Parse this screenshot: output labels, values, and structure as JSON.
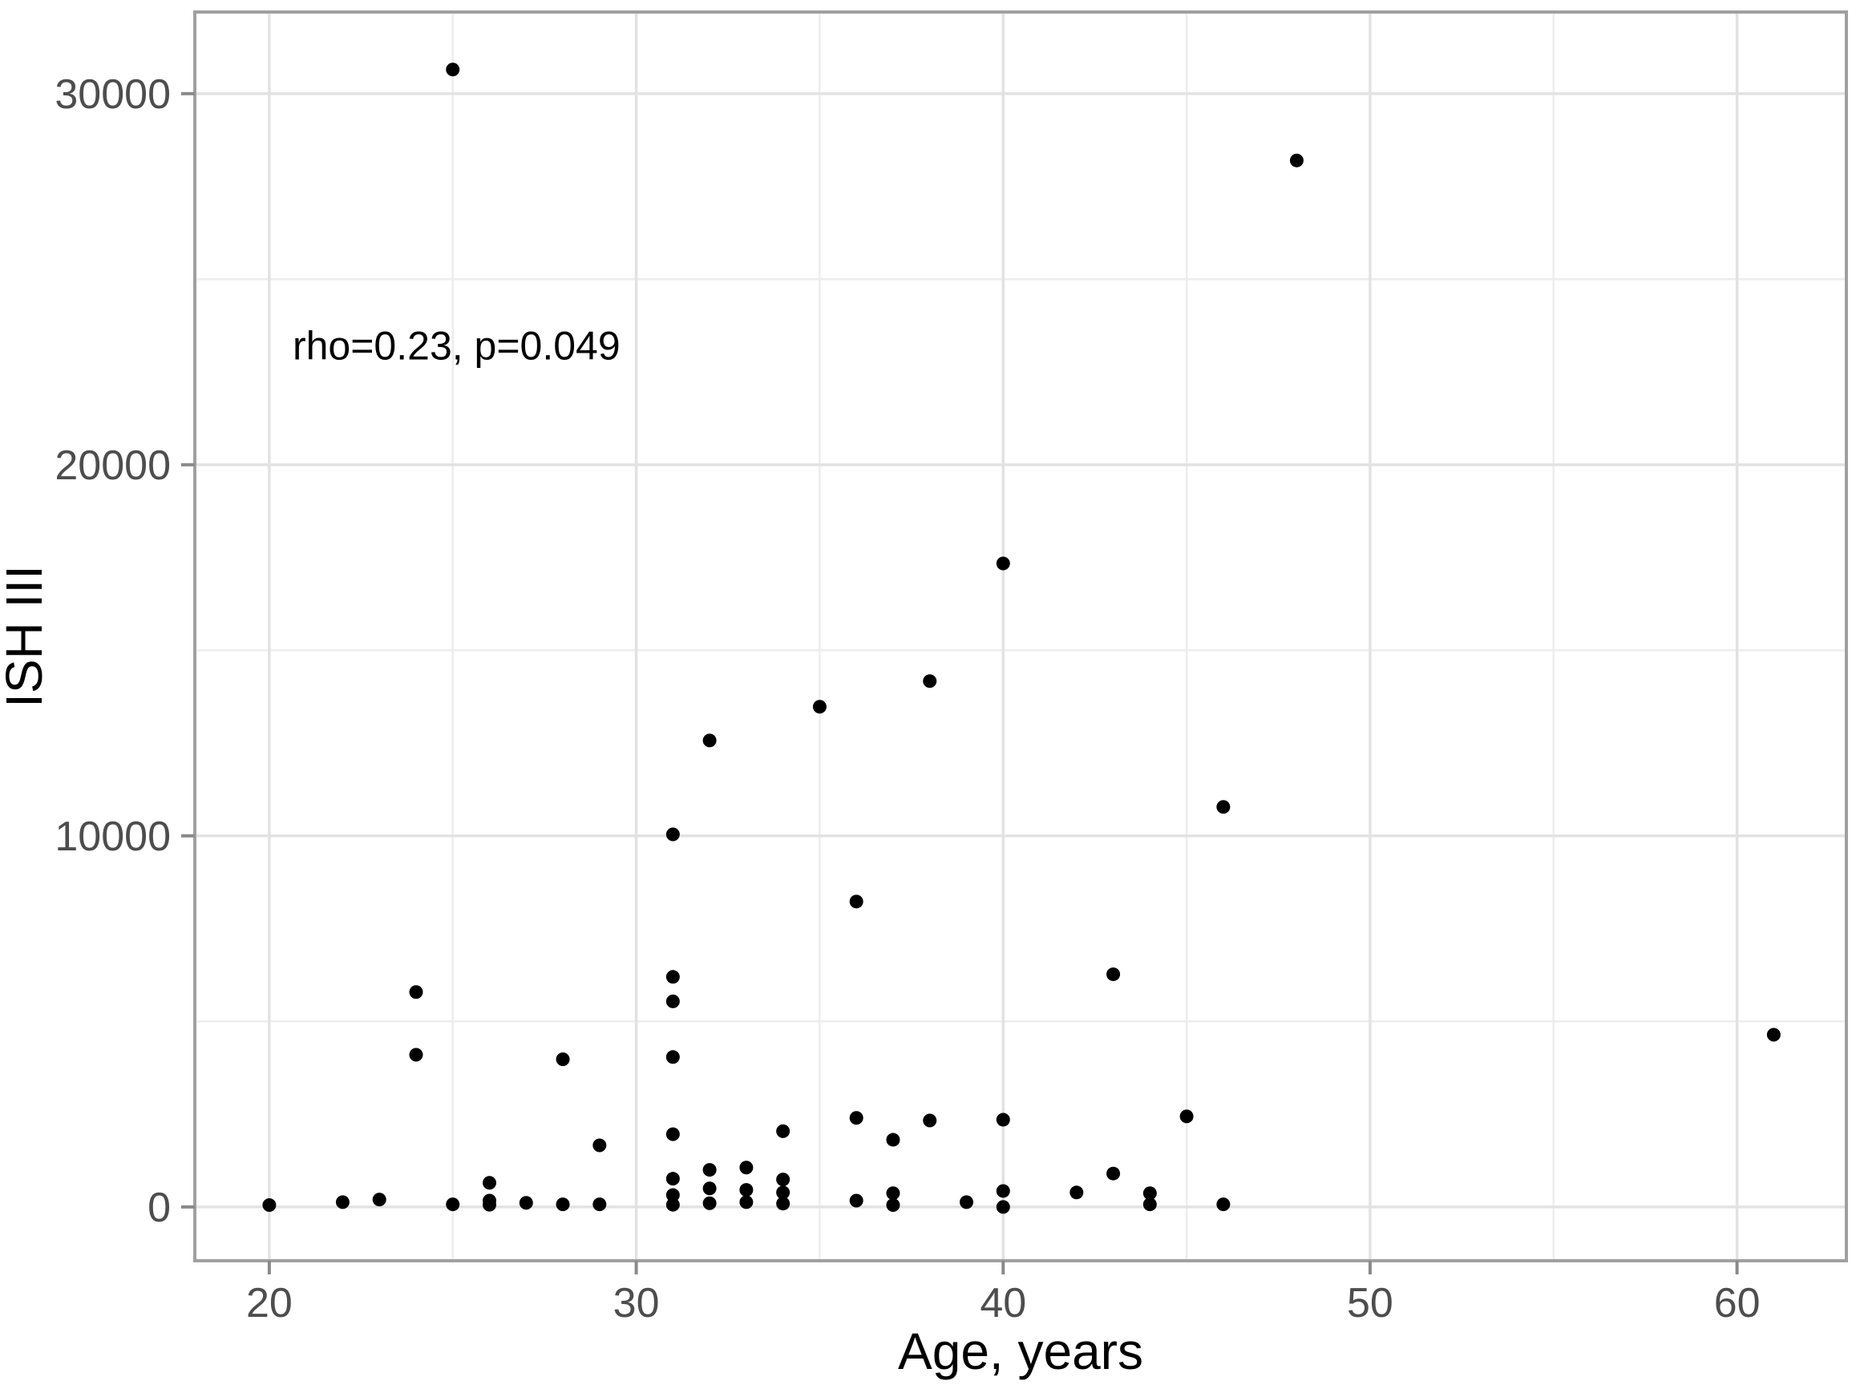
{
  "chart_data": {
    "type": "scatter",
    "title": "",
    "xlabel": "Age, years",
    "ylabel": "ISH III",
    "annotation": {
      "text": "rho=0.23, p=0.049",
      "x": 25.1,
      "y": 23200
    },
    "x_ticks": [
      20,
      30,
      40,
      50,
      60
    ],
    "x_minor_ticks": [
      25,
      35,
      45,
      55
    ],
    "y_ticks": [
      0,
      10000,
      20000,
      30000
    ],
    "y_minor_ticks": [
      5000,
      15000,
      25000
    ],
    "xlim": [
      17.97,
      62.98
    ],
    "ylim": [
      -1450,
      32200
    ],
    "grid": true,
    "legend": "none",
    "point_color": "#000000",
    "background_color": "#ffffff",
    "grid_major_color": "#e2e2e2",
    "grid_minor_color": "#ededed",
    "panel_border_color": "#a0a0a0",
    "tick_mark_color": "#8a8a8a",
    "tick_label_color": "#4d4d4d",
    "points": [
      [
        20,
        50
      ],
      [
        22,
        130
      ],
      [
        23,
        200
      ],
      [
        24,
        5790
      ],
      [
        24,
        4100
      ],
      [
        25,
        30650
      ],
      [
        25,
        70
      ],
      [
        26,
        650
      ],
      [
        26,
        170
      ],
      [
        26,
        60
      ],
      [
        27,
        110
      ],
      [
        28,
        3980
      ],
      [
        28,
        70
      ],
      [
        29,
        1660
      ],
      [
        29,
        70
      ],
      [
        31,
        10040
      ],
      [
        31,
        6200
      ],
      [
        31,
        5540
      ],
      [
        31,
        4040
      ],
      [
        31,
        1960
      ],
      [
        31,
        760
      ],
      [
        31,
        320
      ],
      [
        31,
        60
      ],
      [
        32,
        12570
      ],
      [
        32,
        1000
      ],
      [
        32,
        500
      ],
      [
        32,
        100
      ],
      [
        33,
        1060
      ],
      [
        33,
        460
      ],
      [
        33,
        130
      ],
      [
        34,
        2040
      ],
      [
        34,
        740
      ],
      [
        34,
        390
      ],
      [
        34,
        90
      ],
      [
        35,
        13480
      ],
      [
        36,
        8230
      ],
      [
        36,
        2400
      ],
      [
        36,
        170
      ],
      [
        37,
        1810
      ],
      [
        37,
        370
      ],
      [
        37,
        50
      ],
      [
        38,
        14170
      ],
      [
        38,
        2330
      ],
      [
        39,
        130
      ],
      [
        40,
        17340
      ],
      [
        40,
        2350
      ],
      [
        40,
        430
      ],
      [
        40,
        0
      ],
      [
        42,
        390
      ],
      [
        43,
        6270
      ],
      [
        43,
        900
      ],
      [
        44,
        370
      ],
      [
        44,
        70
      ],
      [
        45,
        2440
      ],
      [
        46,
        10780
      ],
      [
        46,
        70
      ],
      [
        48,
        28200
      ],
      [
        61,
        4640
      ]
    ]
  }
}
